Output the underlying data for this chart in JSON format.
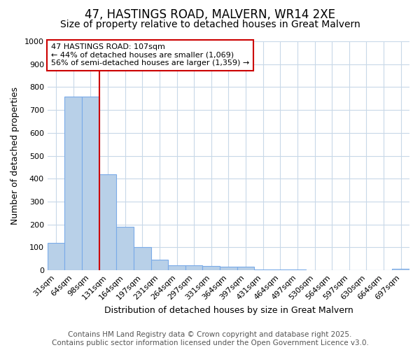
{
  "title": "47, HASTINGS ROAD, MALVERN, WR14 2XE",
  "subtitle": "Size of property relative to detached houses in Great Malvern",
  "xlabel": "Distribution of detached houses by size in Great Malvern",
  "ylabel": "Number of detached properties",
  "categories": [
    "31sqm",
    "64sqm",
    "98sqm",
    "131sqm",
    "164sqm",
    "197sqm",
    "231sqm",
    "264sqm",
    "297sqm",
    "331sqm",
    "364sqm",
    "397sqm",
    "431sqm",
    "464sqm",
    "497sqm",
    "530sqm",
    "564sqm",
    "597sqm",
    "630sqm",
    "664sqm",
    "697sqm"
  ],
  "values": [
    120,
    758,
    758,
    420,
    190,
    100,
    45,
    22,
    22,
    18,
    15,
    15,
    5,
    3,
    3,
    2,
    1,
    1,
    1,
    1,
    8
  ],
  "bar_color": "#b8d0e8",
  "bar_edge_color": "#7aabe8",
  "ylim": [
    0,
    1000
  ],
  "yticks": [
    0,
    100,
    200,
    300,
    400,
    500,
    600,
    700,
    800,
    900,
    1000
  ],
  "red_line_index": 2,
  "annotation_title": "47 HASTINGS ROAD: 107sqm",
  "annotation_line1": "← 44% of detached houses are smaller (1,069)",
  "annotation_line2": "56% of semi-detached houses are larger (1,359) →",
  "annotation_box_color": "#ffffff",
  "annotation_box_edge": "#cc0000",
  "red_line_color": "#cc0000",
  "footer_line1": "Contains HM Land Registry data © Crown copyright and database right 2025.",
  "footer_line2": "Contains public sector information licensed under the Open Government Licence v3.0.",
  "background_color": "#ffffff",
  "plot_background": "#ffffff",
  "grid_color": "#c8d8e8",
  "title_fontsize": 12,
  "subtitle_fontsize": 10,
  "axis_label_fontsize": 9,
  "tick_fontsize": 8,
  "annotation_fontsize": 8,
  "footer_fontsize": 7.5
}
